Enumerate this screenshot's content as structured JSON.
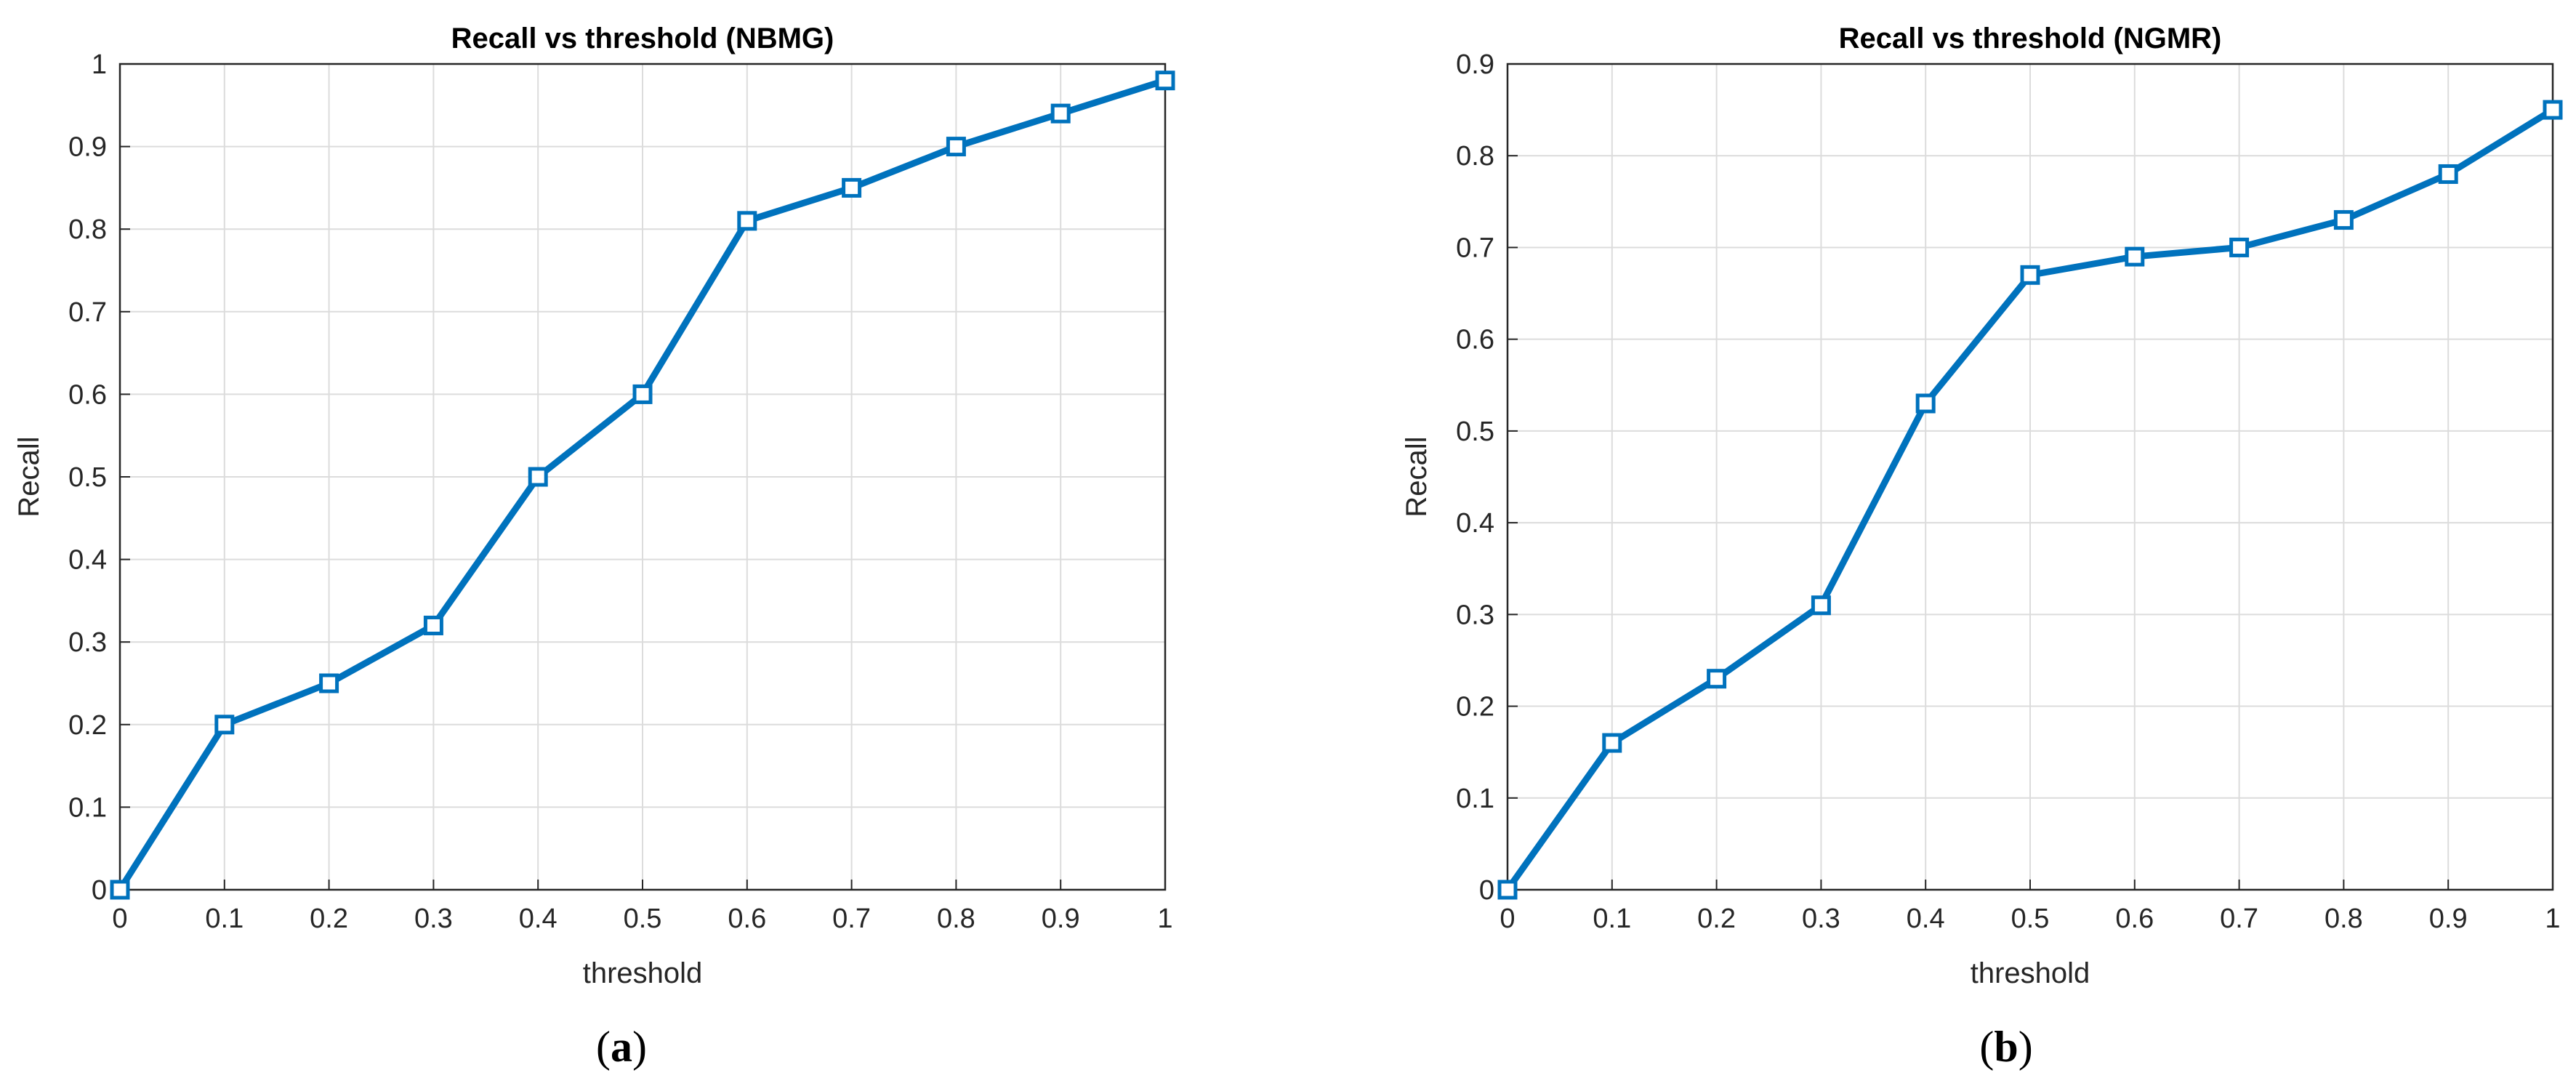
{
  "chart_data": [
    {
      "type": "line",
      "title": "Recall vs threshold (NBMG)",
      "xlabel": "threshold",
      "ylabel": "Recall",
      "caption": "a",
      "xlim": [
        0,
        1
      ],
      "ylim": [
        0,
        1
      ],
      "xticks": [
        "0",
        "0.1",
        "0.2",
        "0.3",
        "0.4",
        "0.5",
        "0.6",
        "0.7",
        "0.8",
        "0.9",
        "1"
      ],
      "yticks": [
        "0",
        "0.1",
        "0.2",
        "0.3",
        "0.4",
        "0.5",
        "0.6",
        "0.7",
        "0.8",
        "0.9",
        "1"
      ],
      "grid": true,
      "marker": "square",
      "color": "#0072BD",
      "x": [
        0,
        0.1,
        0.2,
        0.3,
        0.4,
        0.5,
        0.6,
        0.7,
        0.8,
        0.9,
        1.0
      ],
      "y": [
        0,
        0.2,
        0.25,
        0.32,
        0.5,
        0.6,
        0.81,
        0.85,
        0.9,
        0.94,
        0.98
      ]
    },
    {
      "type": "line",
      "title": "Recall vs threshold (NGMR)",
      "xlabel": "threshold",
      "ylabel": "Recall",
      "caption": "b",
      "xlim": [
        0,
        1
      ],
      "ylim": [
        0,
        0.9
      ],
      "xticks": [
        "0",
        "0.1",
        "0.2",
        "0.3",
        "0.4",
        "0.5",
        "0.6",
        "0.7",
        "0.8",
        "0.9",
        "1"
      ],
      "yticks": [
        "0",
        "0.1",
        "0.2",
        "0.3",
        "0.4",
        "0.5",
        "0.6",
        "0.7",
        "0.8",
        "0.9"
      ],
      "grid": true,
      "marker": "square",
      "color": "#0072BD",
      "x": [
        0,
        0.1,
        0.2,
        0.3,
        0.4,
        0.5,
        0.6,
        0.7,
        0.8,
        0.9,
        1.0
      ],
      "y": [
        0,
        0.16,
        0.23,
        0.31,
        0.53,
        0.67,
        0.69,
        0.7,
        0.73,
        0.78,
        0.85
      ]
    }
  ]
}
